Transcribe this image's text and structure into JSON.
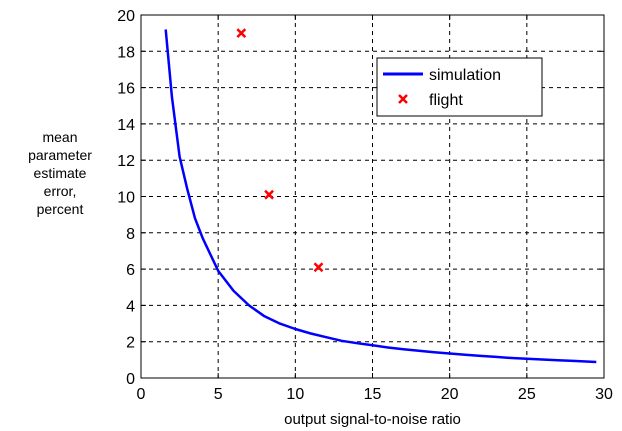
{
  "chart_data": {
    "type": "line",
    "title": "",
    "xlabel": "output signal-to-noise ratio",
    "ylabel_lines": [
      "mean",
      "parameter",
      "estimate",
      "error,",
      "percent"
    ],
    "xlim": [
      0,
      30
    ],
    "ylim": [
      0,
      20
    ],
    "x_ticks": [
      0,
      5,
      10,
      15,
      20,
      25,
      30
    ],
    "y_ticks": [
      0,
      2,
      4,
      6,
      8,
      10,
      12,
      14,
      16,
      18,
      20
    ],
    "grid": true,
    "legend_position": "top-right",
    "series": [
      {
        "name": "simulation",
        "kind": "line",
        "color": "#0000ff",
        "x": [
          1.6,
          2.0,
          2.5,
          3.0,
          3.5,
          4.0,
          5.0,
          6.0,
          7.0,
          8.0,
          9.0,
          10.0,
          11.0,
          12.0,
          13.0,
          14.0,
          15.0,
          16.0,
          17.0,
          18.0,
          19.0,
          20.0,
          21.0,
          22.0,
          23.0,
          24.0,
          25.0,
          26.0,
          27.0,
          28.0,
          29.5
        ],
        "y": [
          19.2,
          15.5,
          12.2,
          10.4,
          8.8,
          7.7,
          5.9,
          4.8,
          4.0,
          3.4,
          3.0,
          2.7,
          2.45,
          2.25,
          2.05,
          1.92,
          1.8,
          1.68,
          1.58,
          1.5,
          1.42,
          1.35,
          1.28,
          1.22,
          1.16,
          1.1,
          1.06,
          1.02,
          0.98,
          0.94,
          0.88
        ]
      },
      {
        "name": "flight",
        "kind": "scatter",
        "marker": "x",
        "color": "#ff0000",
        "x": [
          6.5,
          8.3,
          11.5
        ],
        "y": [
          19.0,
          10.1,
          6.1
        ]
      }
    ]
  }
}
